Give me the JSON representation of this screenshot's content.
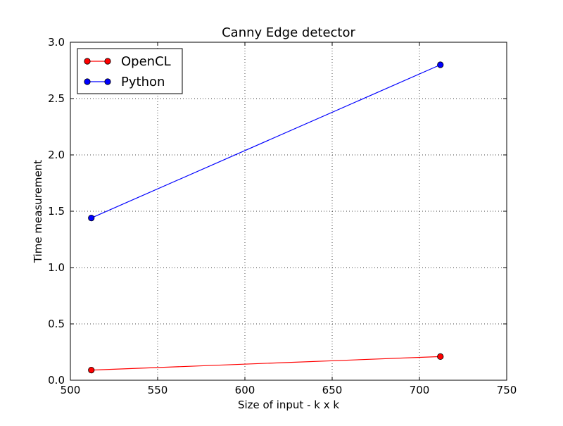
{
  "chart_data": {
    "type": "line",
    "title": "Canny Edge detector",
    "xlabel": "Size of input - k x k",
    "ylabel": "Time measurement",
    "xlim": [
      500,
      750
    ],
    "ylim": [
      0.0,
      3.0
    ],
    "xticks": [
      500,
      550,
      600,
      650,
      700,
      750
    ],
    "xtick_labels": [
      "500",
      "550",
      "600",
      "650",
      "700",
      "750"
    ],
    "yticks": [
      0.0,
      0.5,
      1.0,
      1.5,
      2.0,
      2.5,
      3.0
    ],
    "ytick_labels": [
      "0.0",
      "0.5",
      "1.0",
      "1.5",
      "2.0",
      "2.5",
      "3.0"
    ],
    "grid": true,
    "legend_position": "top-left",
    "series": [
      {
        "name": "OpenCL",
        "color": "#ff0000",
        "x": [
          512,
          712
        ],
        "y": [
          0.09,
          0.21
        ]
      },
      {
        "name": "Python",
        "color": "#0000ff",
        "x": [
          512,
          712
        ],
        "y": [
          1.44,
          2.8
        ]
      }
    ]
  }
}
